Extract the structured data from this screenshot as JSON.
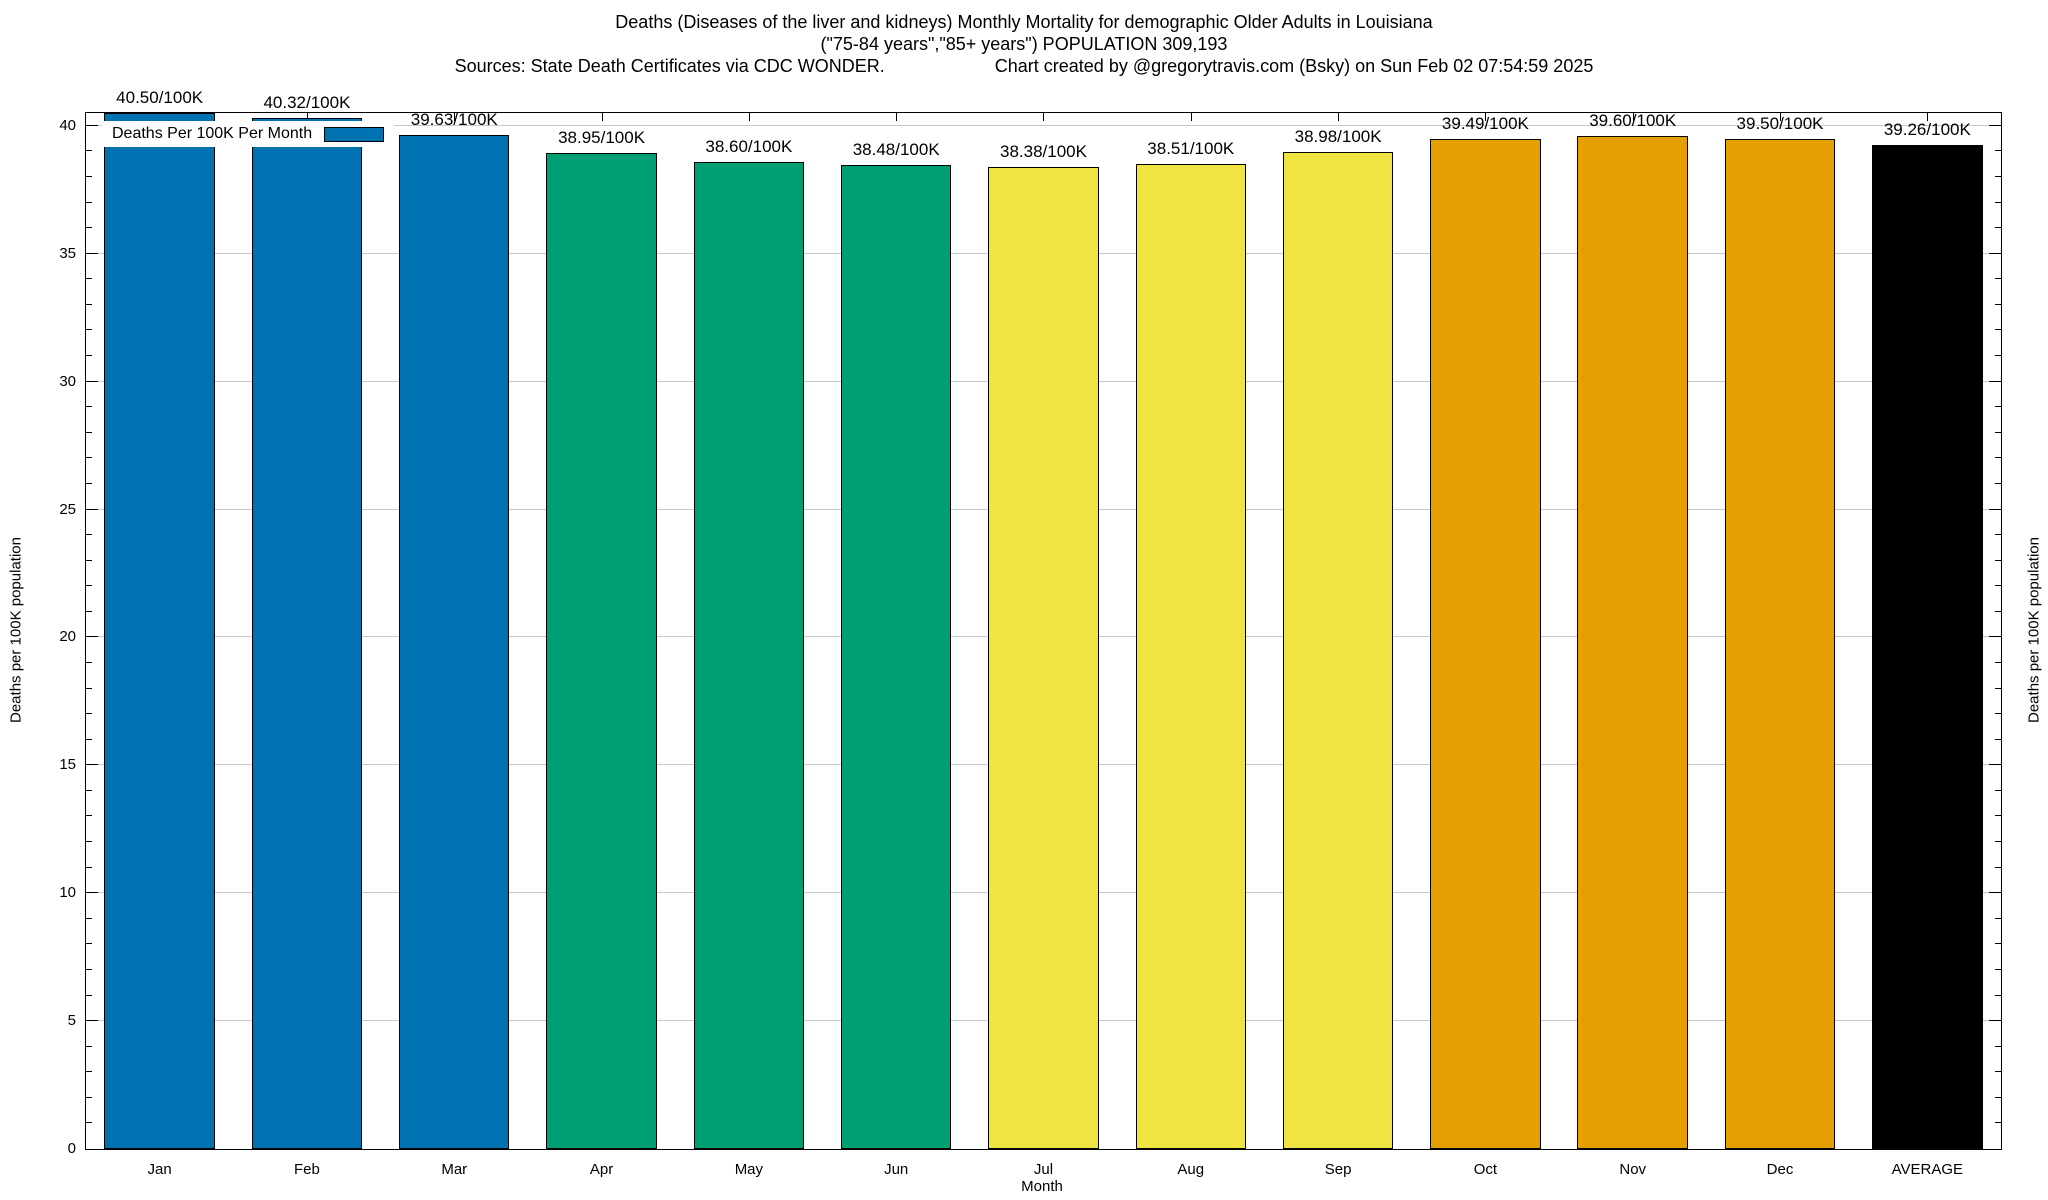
{
  "header": {
    "title_line1": "Deaths (Diseases of the liver and kidneys) Monthly Mortality for demographic Older Adults in Louisiana",
    "title_line2": "(\"75-84 years\",\"85+ years\") POPULATION 309,193",
    "source_left": "Sources: State Death Certificates via CDC WONDER.",
    "source_right": "Chart created by @gregorytravis.com (Bsky) on Sun Feb 02 07:54:59 2025"
  },
  "legend": {
    "label": "Deaths Per 100K Per Month",
    "swatch_color": "#0072B2"
  },
  "chart_data": {
    "type": "bar",
    "title": "Deaths (Diseases of the liver and kidneys) Monthly Mortality for demographic Older Adults in Louisiana",
    "subtitle": "(\"75-84 years\",\"85+ years\") POPULATION 309,193",
    "categories": [
      "Jan",
      "Feb",
      "Mar",
      "Apr",
      "May",
      "Jun",
      "Jul",
      "Aug",
      "Sep",
      "Oct",
      "Nov",
      "Dec",
      "AVERAGE"
    ],
    "values": [
      40.5,
      40.32,
      39.63,
      38.95,
      38.6,
      38.48,
      38.38,
      38.51,
      38.98,
      39.49,
      39.6,
      39.5,
      39.26
    ],
    "value_labels": [
      "40.50/100K",
      "40.32/100K",
      "39.63/100K",
      "38.95/100K",
      "38.60/100K",
      "38.48/100K",
      "38.38/100K",
      "38.51/100K",
      "38.98/100K",
      "39.49/100K",
      "39.60/100K",
      "39.50/100K",
      "39.26/100K"
    ],
    "bar_colors": [
      "#0072B2",
      "#0072B2",
      "#0072B2",
      "#009E73",
      "#009E73",
      "#009E73",
      "#F0E442",
      "#F0E442",
      "#F0E442",
      "#E69F00",
      "#E69F00",
      "#E69F00",
      "#000000"
    ],
    "xlabel": "Month",
    "ylabel_left": "Deaths per 100K population",
    "ylabel_right": "Deaths per 100K population",
    "ylim": [
      0,
      40.5
    ],
    "yticks": [
      0,
      5,
      10,
      15,
      20,
      25,
      30,
      35,
      40
    ],
    "minor_tick_step": 1,
    "grid": true,
    "gridline_color": "#c8c8c8",
    "legend_entry": "Deaths Per 100K Per Month",
    "legend_position": "top-left",
    "series": [
      {
        "name": "Deaths Per 100K Per Month",
        "values": [
          40.5,
          40.32,
          39.63,
          38.95,
          38.6,
          38.48,
          38.38,
          38.51,
          38.98,
          39.49,
          39.6,
          39.5,
          39.26
        ]
      }
    ]
  }
}
